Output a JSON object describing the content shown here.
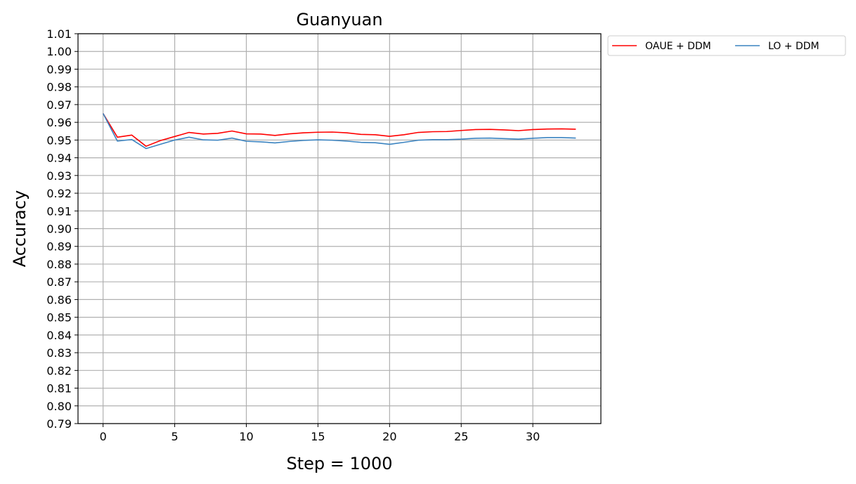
{
  "chart_data": {
    "type": "line",
    "title": "Guanyuan",
    "xlabel": "Step = 1000",
    "ylabel": "Accuracy",
    "xlim": [
      -1.75,
      34.75
    ],
    "ylim": [
      0.79,
      1.01
    ],
    "x_ticks": [
      0,
      5,
      10,
      15,
      20,
      25,
      30
    ],
    "x_tick_labels": [
      "0",
      "5",
      "10",
      "15",
      "20",
      "25",
      "30"
    ],
    "y_ticks": [
      0.79,
      0.8,
      0.81,
      0.82,
      0.83,
      0.84,
      0.85,
      0.86,
      0.87,
      0.88,
      0.89,
      0.9,
      0.91,
      0.92,
      0.93,
      0.94,
      0.95,
      0.96,
      0.97,
      0.98,
      0.99,
      1.0,
      1.01
    ],
    "y_tick_labels": [
      "0.79",
      "0.80",
      "0.81",
      "0.82",
      "0.83",
      "0.84",
      "0.85",
      "0.86",
      "0.87",
      "0.88",
      "0.89",
      "0.90",
      "0.91",
      "0.92",
      "0.93",
      "0.94",
      "0.95",
      "0.96",
      "0.97",
      "0.98",
      "0.99",
      "1.00",
      "1.01"
    ],
    "grid": true,
    "legend_position": "outside-top-right",
    "x": [
      0,
      1,
      2,
      3,
      4,
      5,
      6,
      7,
      8,
      9,
      10,
      11,
      12,
      13,
      14,
      15,
      16,
      17,
      18,
      19,
      20,
      21,
      22,
      23,
      24,
      25,
      26,
      27,
      28,
      29,
      30,
      31,
      32,
      33
    ],
    "series": [
      {
        "name": "OAUE + DDM",
        "color": "#ff0000",
        "values": [
          0.965,
          0.9516,
          0.9528,
          0.9465,
          0.9497,
          0.952,
          0.9543,
          0.9534,
          0.9538,
          0.9551,
          0.9535,
          0.9534,
          0.9526,
          0.9535,
          0.9541,
          0.9544,
          0.9545,
          0.9541,
          0.9532,
          0.953,
          0.9521,
          0.953,
          0.9543,
          0.9547,
          0.9548,
          0.9554,
          0.9559,
          0.956,
          0.9557,
          0.9553,
          0.9559,
          0.9562,
          0.9563,
          0.9561
        ]
      },
      {
        "name": "LO + DDM",
        "color": "#3a83c0",
        "values": [
          0.965,
          0.9494,
          0.9503,
          0.9452,
          0.9476,
          0.95,
          0.9516,
          0.9501,
          0.9499,
          0.9511,
          0.9493,
          0.949,
          0.9484,
          0.9492,
          0.9498,
          0.9501,
          0.9499,
          0.9494,
          0.9487,
          0.9485,
          0.9476,
          0.9487,
          0.9499,
          0.9502,
          0.9502,
          0.9505,
          0.951,
          0.9511,
          0.9508,
          0.9505,
          0.951,
          0.9514,
          0.9514,
          0.9511
        ]
      }
    ]
  }
}
